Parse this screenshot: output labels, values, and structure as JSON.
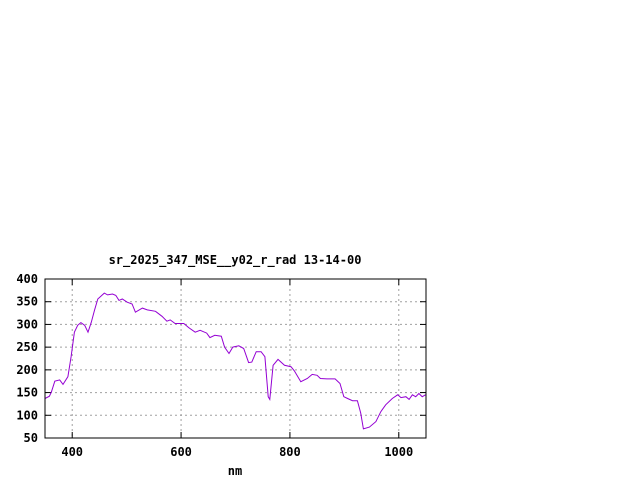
{
  "chart_data": {
    "type": "line",
    "title": "sr_2025_347_MSE__y02_r_rad 13-14-00",
    "xlabel": "nm",
    "ylabel": "",
    "xlim": [
      350,
      1050
    ],
    "ylim": [
      50,
      400
    ],
    "xticks": [
      400,
      600,
      800,
      1000
    ],
    "yticks": [
      50,
      100,
      150,
      200,
      250,
      300,
      350,
      400
    ],
    "grid": true,
    "line_color": "#9400d3",
    "series": [
      {
        "x": [
          350,
          358,
          362,
          368,
          377,
          383,
          392,
          398,
          404,
          410,
          416,
          423,
          429,
          435,
          441,
          447,
          459,
          465,
          474,
          480,
          486,
          492,
          501,
          510,
          516,
          529,
          538,
          553,
          565,
          574,
          580,
          589,
          605,
          614,
          626,
          635,
          647,
          653,
          662,
          674,
          680,
          688,
          695,
          706,
          715,
          724,
          730,
          738,
          747,
          754,
          760,
          763,
          769,
          778,
          790,
          802,
          808,
          820,
          832,
          841,
          850,
          856,
          868,
          883,
          892,
          899,
          906,
          915,
          924,
          930,
          935,
          946,
          958,
          967,
          976,
          988,
          998,
          1004,
          1013,
          1019,
          1025,
          1031,
          1037,
          1043,
          1049
        ],
        "y": [
          137,
          142,
          152,
          175,
          178,
          168,
          185,
          229,
          283,
          298,
          304,
          298,
          283,
          305,
          331,
          356,
          369,
          365,
          367,
          364,
          353,
          356,
          349,
          345,
          327,
          336,
          332,
          329,
          318,
          307,
          310,
          302,
          302,
          293,
          283,
          287,
          281,
          271,
          276,
          274,
          250,
          236,
          250,
          253,
          247,
          216,
          217,
          240,
          240,
          229,
          141,
          135,
          210,
          223,
          210,
          207,
          198,
          174,
          181,
          190,
          188,
          181,
          180,
          180,
          170,
          141,
          137,
          132,
          132,
          105,
          70,
          74,
          86,
          108,
          123,
          137,
          145,
          139,
          141,
          135,
          145,
          141,
          148,
          141,
          145
        ]
      }
    ]
  }
}
